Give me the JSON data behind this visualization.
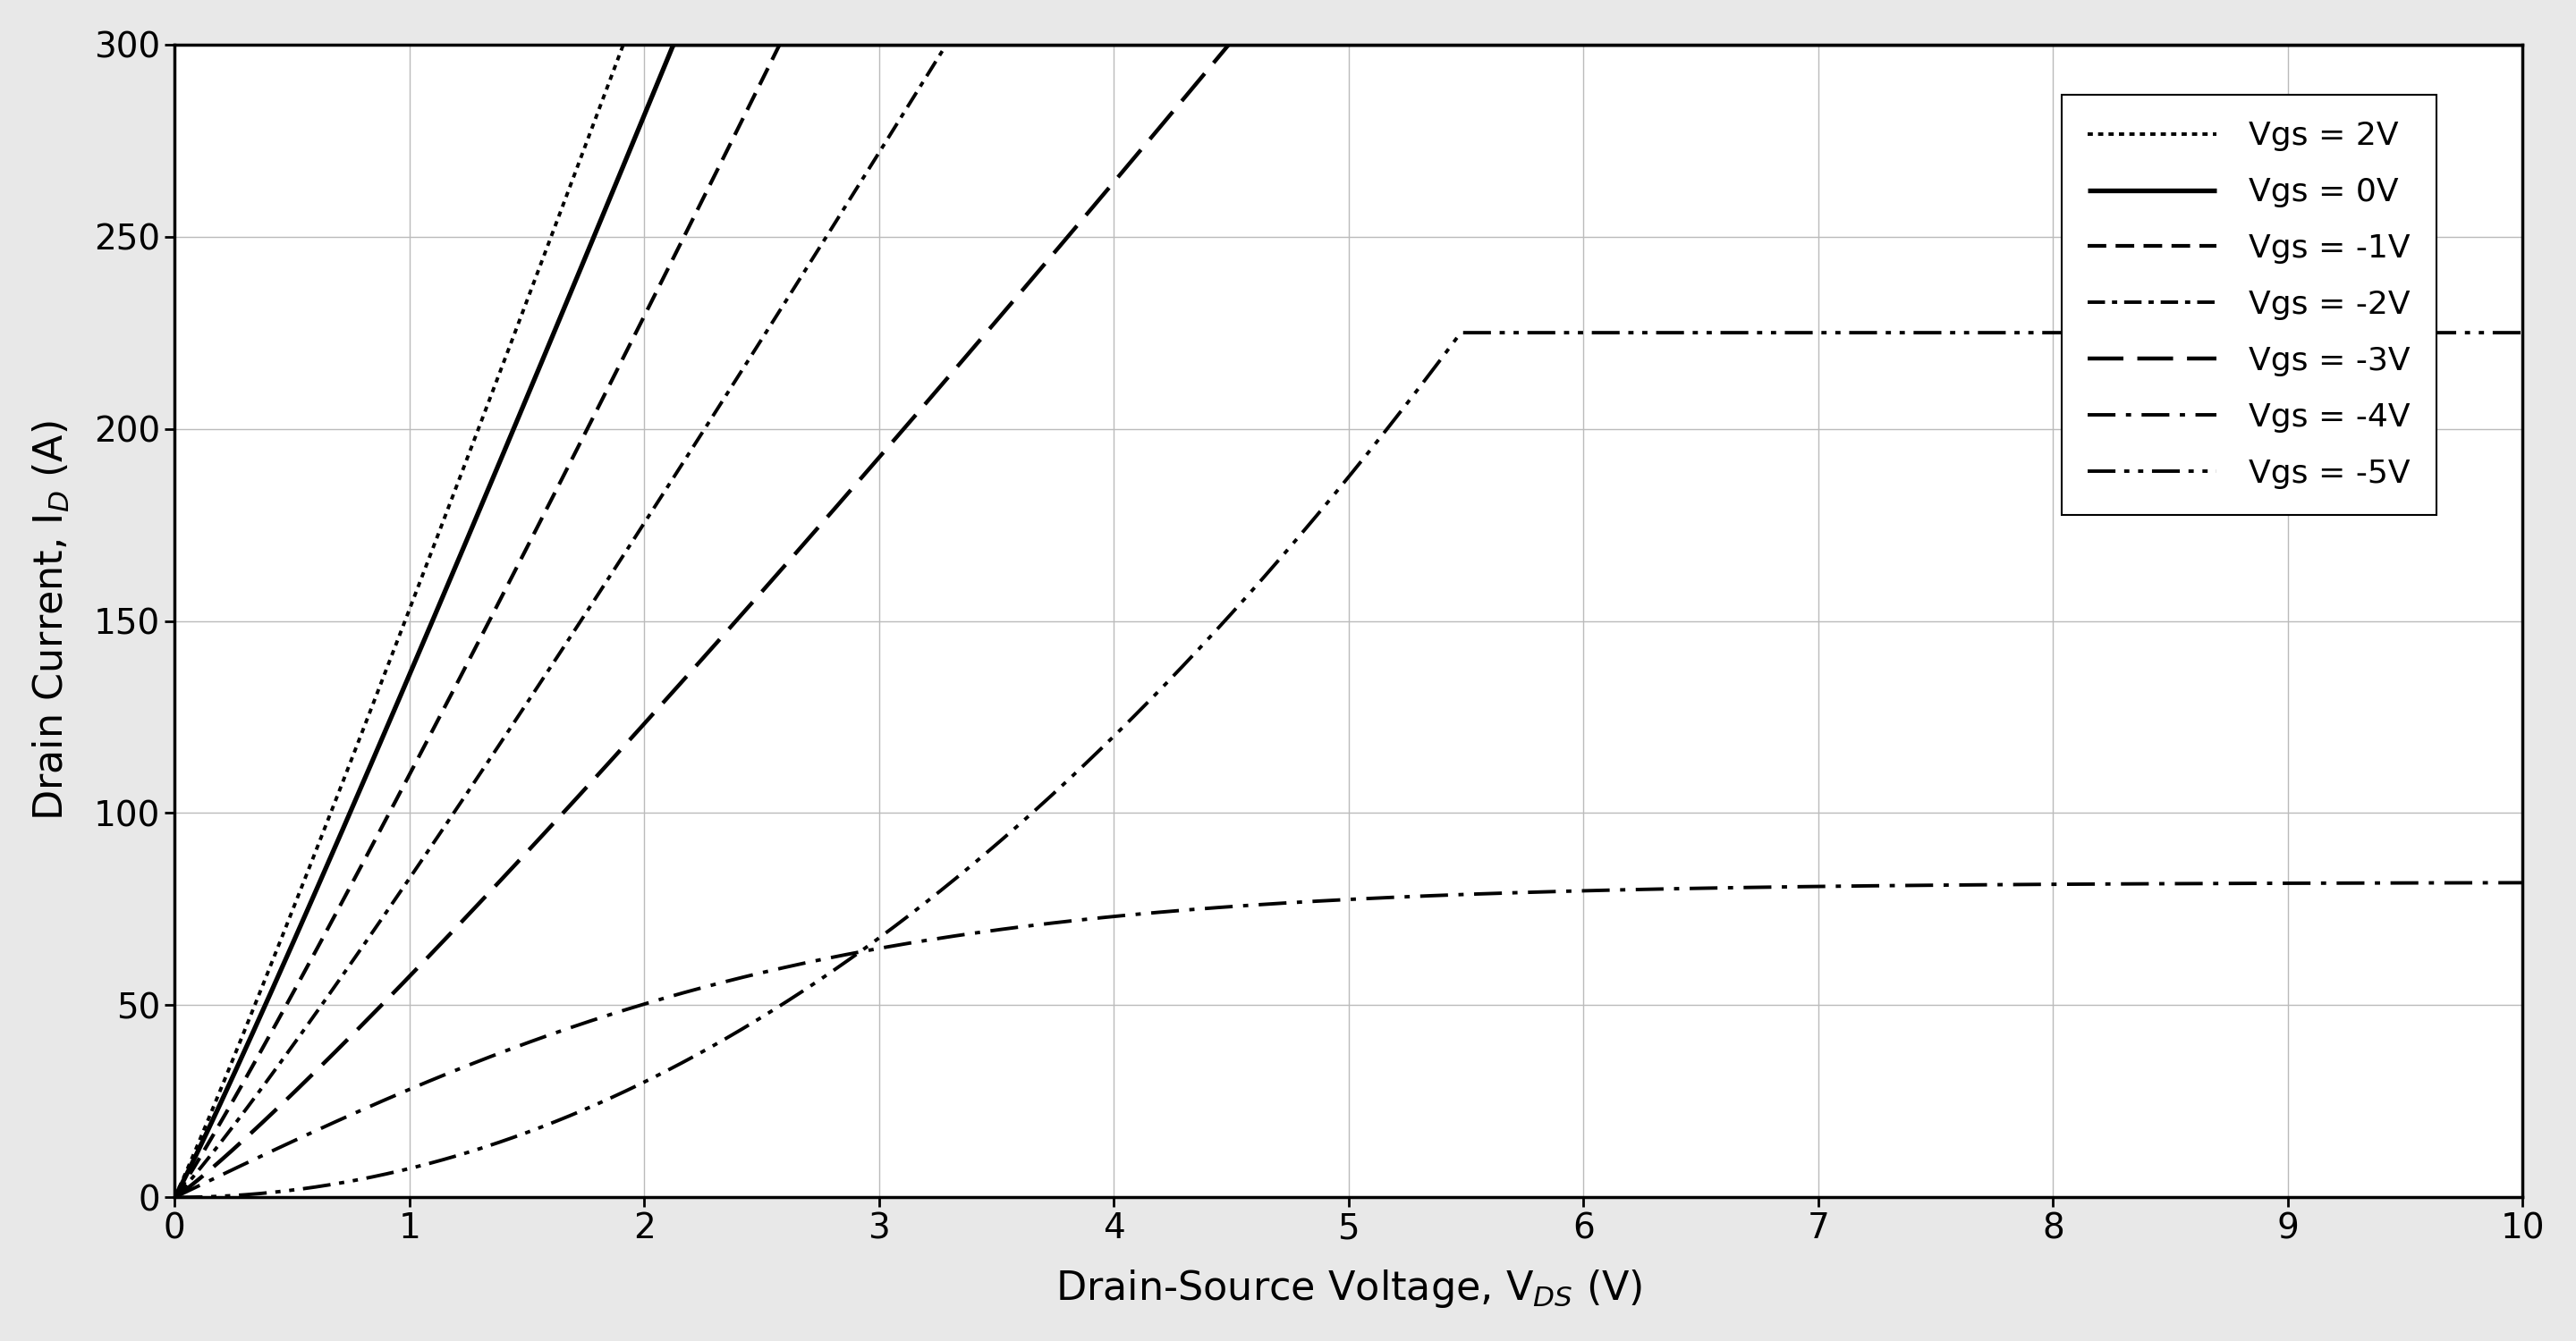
{
  "title": "",
  "xlabel": "Drain-Source Voltage, V$_{DS}$ (V)",
  "ylabel": "Drain Current, I$_{D}$ (A)",
  "xlim": [
    0,
    10
  ],
  "ylim": [
    0,
    300
  ],
  "xticks": [
    0,
    1,
    2,
    3,
    4,
    5,
    6,
    7,
    8,
    9,
    10
  ],
  "yticks": [
    0,
    50,
    100,
    150,
    200,
    250,
    300
  ],
  "background_color": "#e8e8e8",
  "plot_bg": "#ffffff",
  "curves": [
    {
      "label": "Vgs = 2V",
      "linestyle": "densely dotted",
      "linewidth": 2.8,
      "color": "#000000",
      "vgs": 2,
      "slope": 155.0,
      "power": 1.05,
      "clip": 301
    },
    {
      "label": "Vgs = 0V",
      "linestyle": "solid",
      "linewidth": 3.8,
      "color": "#000000",
      "vgs": 0,
      "slope": 138.0,
      "power": 1.05,
      "clip": 301
    },
    {
      "label": "Vgs = -1V",
      "linestyle": "medium dashed",
      "linewidth": 3.0,
      "color": "#000000",
      "vgs": -1,
      "slope": 112.0,
      "power": 1.05,
      "clip": 301
    },
    {
      "label": "Vgs = -2V",
      "linestyle": "dashdot",
      "linewidth": 2.8,
      "color": "#000000",
      "vgs": -2,
      "slope": 84.0,
      "power": 1.07,
      "clip": 301
    },
    {
      "label": "Vgs = -3V",
      "linestyle": "loosely dashed",
      "linewidth": 3.2,
      "color": "#000000",
      "vgs": -3,
      "slope": 57.0,
      "power": 1.08,
      "clip": 301
    },
    {
      "label": "Vgs = -4V",
      "linestyle": "loosely dashdotted",
      "linewidth": 2.8,
      "color": "#000000",
      "vgs": -4,
      "slope": 8.0,
      "power": 1.15,
      "clip": 301
    },
    {
      "label": "Vgs = -5V",
      "linestyle": "loosely dashdotdotted",
      "linewidth": 2.8,
      "color": "#000000",
      "vgs": -5,
      "slope": 23.0,
      "power": 1.12,
      "clip": 301
    }
  ]
}
